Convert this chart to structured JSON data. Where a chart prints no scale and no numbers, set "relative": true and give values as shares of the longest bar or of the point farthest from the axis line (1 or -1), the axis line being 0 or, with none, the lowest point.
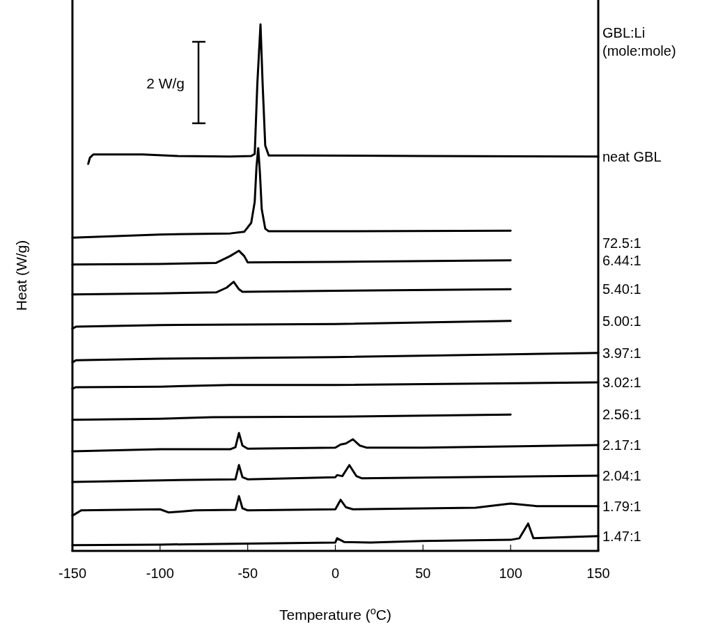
{
  "chart_data": {
    "type": "line",
    "relative": true,
    "xlabel": "Temperature ($^{o}$C)",
    "ylabel": "Heat (W/g)",
    "legend_title": "GBL:Li (mole:mole)",
    "annotations": [
      "2 W/g"
    ],
    "grid": false,
    "marker": "none",
    "line_style": "solid",
    "xlim": [
      -150,
      150
    ],
    "xticks": [
      -150,
      -100,
      -50,
      0,
      50,
      100,
      150
    ],
    "tick_labels": "x",
    "series": [
      {
        "name": "neat GBL",
        "color": "#000000",
        "x": [
          -141,
          -140,
          -138,
          -110,
          -90,
          -60,
          -48,
          -46,
          -44.5,
          -42.7,
          -41.5,
          -40,
          -38,
          -20,
          50,
          150
        ],
        "values": [
          0.735,
          0.747,
          0.753,
          0.753,
          0.75,
          0.749,
          0.75,
          0.754,
          0.888,
          1.0,
          0.888,
          0.77,
          0.751,
          0.751,
          0.75,
          0.749
        ]
      },
      {
        "name": "72.5:1",
        "color": "#000000",
        "x": [
          -150,
          -100,
          -60,
          -52,
          -48,
          -46,
          -45,
          -44,
          -43,
          -42,
          -40,
          -38,
          0,
          100
        ],
        "values": [
          0.595,
          0.601,
          0.603,
          0.606,
          0.623,
          0.663,
          0.729,
          0.765,
          0.716,
          0.649,
          0.612,
          0.607,
          0.607,
          0.608
        ]
      },
      {
        "name": "6.44:1",
        "color": "#000000",
        "x": [
          -150,
          -100,
          -68,
          -60,
          -55,
          -52,
          -50,
          0,
          100
        ],
        "values": [
          0.544,
          0.545,
          0.547,
          0.56,
          0.57,
          0.56,
          0.548,
          0.549,
          0.552
        ]
      },
      {
        "name": "5.40:1",
        "color": "#000000",
        "x": [
          -150,
          -100,
          -68,
          -62,
          -58,
          -55,
          -53,
          0,
          100
        ],
        "values": [
          0.487,
          0.489,
          0.491,
          0.5,
          0.511,
          0.497,
          0.492,
          0.494,
          0.497
        ]
      },
      {
        "name": "5.00:1",
        "color": "#000000",
        "x": [
          -150,
          -148,
          -100,
          0,
          100
        ],
        "values": [
          0.422,
          0.426,
          0.429,
          0.431,
          0.437
        ]
      },
      {
        "name": "3.97:1",
        "color": "#000000",
        "x": [
          -150,
          -148,
          -100,
          0,
          150
        ],
        "values": [
          0.358,
          0.362,
          0.365,
          0.368,
          0.376
        ]
      },
      {
        "name": "3.02:1",
        "color": "#000000",
        "x": [
          -150,
          -148,
          -100,
          -60,
          0,
          150
        ],
        "values": [
          0.308,
          0.311,
          0.312,
          0.315,
          0.315,
          0.32
        ]
      },
      {
        "name": "2.56:1",
        "color": "#000000",
        "x": [
          -150,
          -100,
          -70,
          0,
          100
        ],
        "values": [
          0.249,
          0.251,
          0.254,
          0.255,
          0.259
        ]
      },
      {
        "name": "2.17:1",
        "color": "#000000",
        "x": [
          -150,
          -100,
          -60,
          -57,
          -55,
          -53,
          -50,
          0,
          3,
          6,
          10,
          14,
          18,
          50,
          150
        ],
        "values": [
          0.189,
          0.193,
          0.193,
          0.197,
          0.224,
          0.2,
          0.194,
          0.196,
          0.202,
          0.204,
          0.212,
          0.2,
          0.196,
          0.196,
          0.201
        ]
      },
      {
        "name": "2.04:1",
        "color": "#000000",
        "x": [
          -150,
          -100,
          -57,
          -55,
          -53,
          -50,
          0,
          1,
          4,
          8,
          12,
          15,
          150
        ],
        "values": [
          0.131,
          0.134,
          0.136,
          0.163,
          0.14,
          0.136,
          0.14,
          0.144,
          0.142,
          0.163,
          0.142,
          0.138,
          0.143
        ]
      },
      {
        "name": "1.79:1",
        "color": "#000000",
        "x": [
          -150,
          -145,
          -100,
          -95,
          -80,
          -57,
          -55,
          -53,
          -50,
          0,
          3,
          6,
          10,
          80,
          100,
          115,
          150
        ],
        "values": [
          0.067,
          0.077,
          0.079,
          0.073,
          0.077,
          0.078,
          0.104,
          0.081,
          0.077,
          0.079,
          0.097,
          0.083,
          0.079,
          0.082,
          0.09,
          0.085,
          0.085
        ]
      },
      {
        "name": "1.47:1",
        "color": "#000000",
        "x": [
          -150,
          -100,
          0,
          1,
          5,
          20,
          50,
          100,
          105,
          110,
          113,
          150
        ],
        "values": [
          0.011,
          0.012,
          0.016,
          0.024,
          0.017,
          0.016,
          0.019,
          0.021,
          0.024,
          0.052,
          0.024,
          0.028
        ]
      }
    ]
  }
}
